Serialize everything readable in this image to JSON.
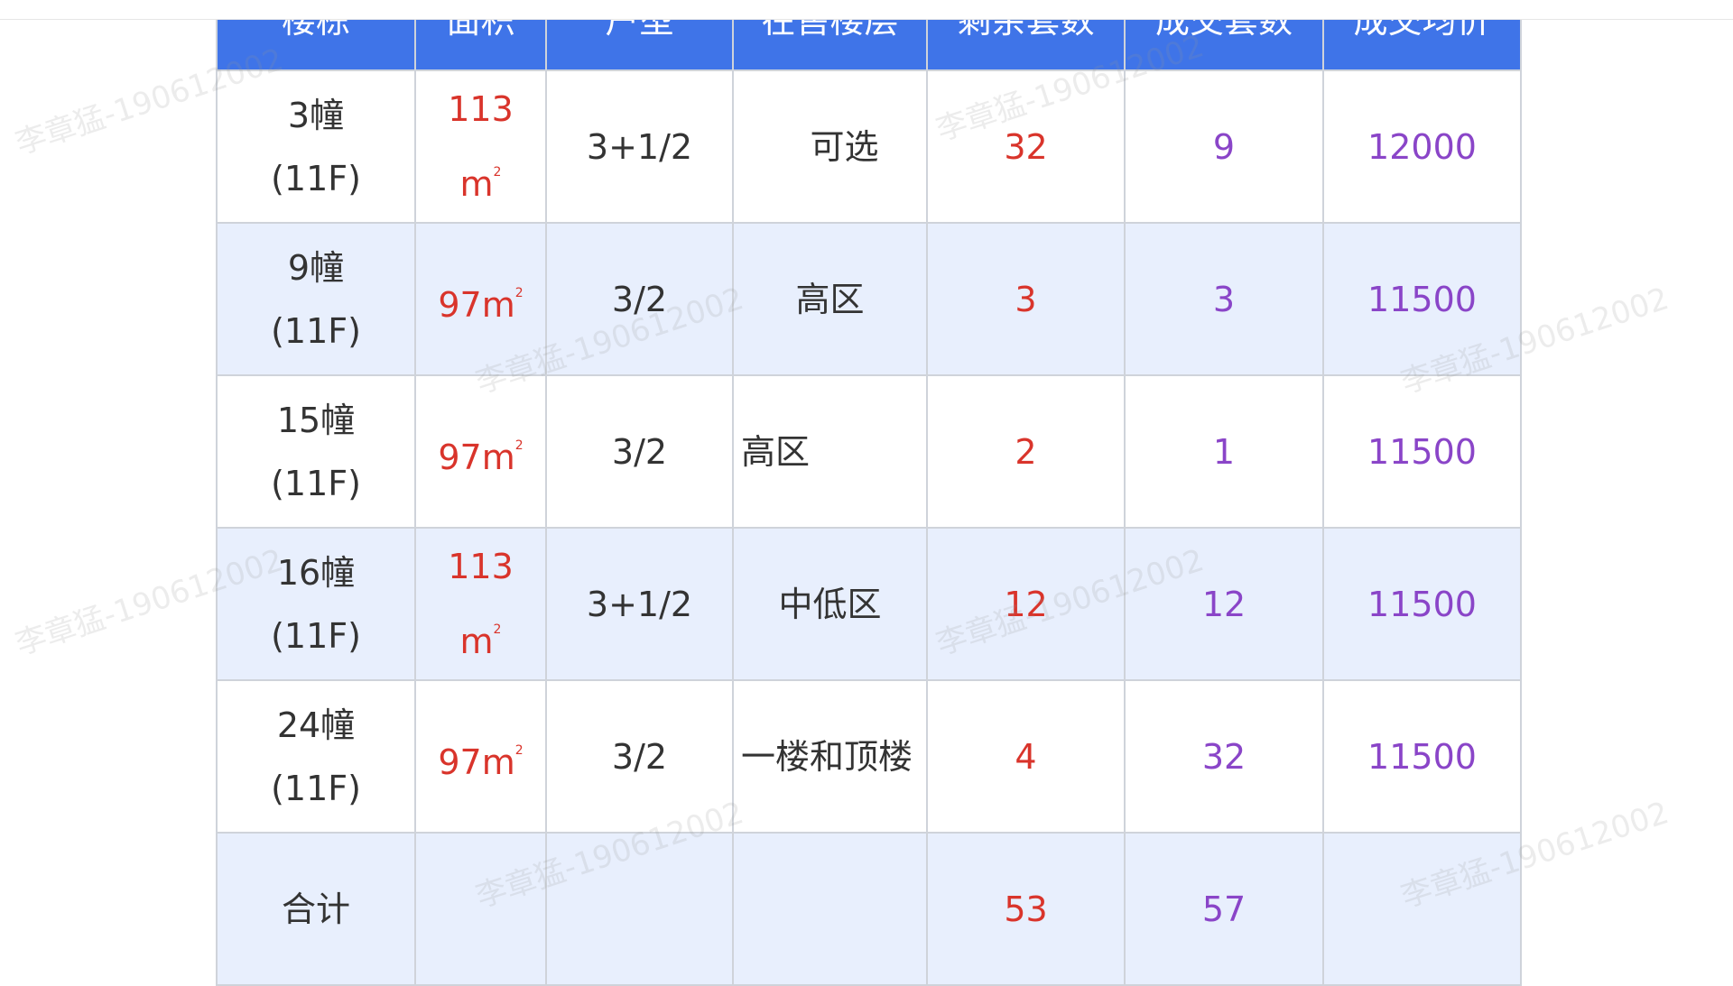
{
  "table": {
    "headers": [
      "楼栋",
      "面积",
      "户型",
      "在售楼层",
      "剩余套数",
      "成交套数",
      "成交均价"
    ],
    "rows": [
      {
        "building": "3幢",
        "floors": "(11F)",
        "area": "113",
        "unit": "m",
        "sup": "2",
        "layout": "3+1/2",
        "sale_floor": "可选",
        "remaining": "32",
        "sold": "9",
        "price": "12000"
      },
      {
        "building": "9幢",
        "floors": "(11F)",
        "area": "97",
        "unit": "m",
        "sup": "2",
        "layout": "3/2",
        "sale_floor": "高区",
        "remaining": "3",
        "sold": "3",
        "price": "11500"
      },
      {
        "building": "15幢",
        "floors": "(11F)",
        "area": "97",
        "unit": "m",
        "sup": "2",
        "layout": "3/2",
        "sale_floor": "高区",
        "remaining": "2",
        "sold": "1",
        "price": "11500"
      },
      {
        "building": "16幢",
        "floors": "(11F)",
        "area": "113",
        "unit": "m",
        "sup": "2",
        "layout": "3+1/2",
        "sale_floor": "中低区",
        "remaining": "12",
        "sold": "12",
        "price": "11500"
      },
      {
        "building": "24幢",
        "floors": "(11F)",
        "area": "97",
        "unit": "m",
        "sup": "2",
        "layout": "3/2",
        "sale_floor": "一楼和顶楼",
        "remaining": "4",
        "sold": "32",
        "price": "11500"
      }
    ],
    "total": {
      "label": "合计",
      "remaining": "53",
      "sold": "57"
    }
  },
  "watermark": "李章猛-190612002",
  "colors": {
    "header": "#3f74e8",
    "alt_row": "#e8effd",
    "red": "#d9342b",
    "purple": "#8a45c8"
  }
}
